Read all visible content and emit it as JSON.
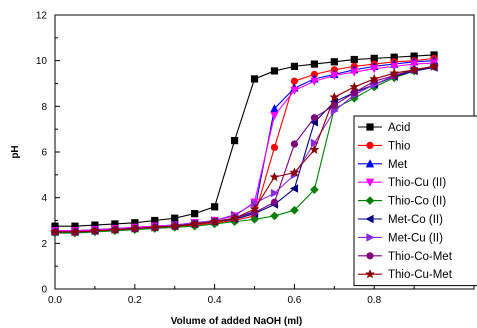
{
  "chart_data": {
    "type": "line",
    "xlabel": "Volume of added NaOH (ml)",
    "ylabel": "pH",
    "xlim": [
      0.0,
      0.95
    ],
    "ylim": [
      0,
      12
    ],
    "x_ticks": [
      0.0,
      0.2,
      0.4,
      0.6,
      0.8
    ],
    "y_ticks": [
      0,
      2,
      4,
      6,
      8,
      10,
      12
    ],
    "x_tick_labels": [
      "0.0",
      "0.2",
      "0.4",
      "0.6",
      "0.8"
    ],
    "y_tick_labels": [
      "0",
      "2",
      "4",
      "6",
      "8",
      "10",
      "12"
    ],
    "grid": false,
    "legend_position": "right",
    "x": [
      0.0,
      0.05,
      0.1,
      0.15,
      0.2,
      0.25,
      0.3,
      0.35,
      0.4,
      0.45,
      0.5,
      0.55,
      0.6,
      0.65,
      0.7,
      0.75,
      0.8,
      0.85,
      0.9,
      0.95
    ],
    "series": [
      {
        "name": "Acid",
        "color": "#000000",
        "marker": "square",
        "values": [
          2.75,
          2.75,
          2.8,
          2.85,
          2.9,
          3.0,
          3.1,
          3.3,
          3.6,
          6.5,
          9.2,
          9.55,
          9.75,
          9.85,
          9.95,
          10.05,
          10.1,
          10.15,
          10.2,
          10.25
        ]
      },
      {
        "name": "Thio",
        "color": "#ff0000",
        "marker": "circle",
        "values": [
          2.5,
          2.5,
          2.55,
          2.6,
          2.65,
          2.7,
          2.75,
          2.8,
          2.9,
          3.0,
          3.2,
          6.2,
          9.1,
          9.4,
          9.6,
          9.75,
          9.85,
          9.95,
          10.0,
          10.1
        ]
      },
      {
        "name": "Met",
        "color": "#0000ff",
        "marker": "triangle-up",
        "values": [
          2.55,
          2.55,
          2.6,
          2.65,
          2.7,
          2.75,
          2.8,
          2.85,
          2.95,
          3.1,
          3.4,
          7.9,
          8.8,
          9.2,
          9.4,
          9.6,
          9.75,
          9.85,
          9.95,
          10.0
        ]
      },
      {
        "name": "Thio-Cu (II)",
        "color": "#ff00ff",
        "marker": "triangle-down",
        "values": [
          2.55,
          2.55,
          2.6,
          2.65,
          2.7,
          2.75,
          2.8,
          2.9,
          3.0,
          3.2,
          3.8,
          7.6,
          8.7,
          9.1,
          9.35,
          9.5,
          9.65,
          9.75,
          9.85,
          9.9
        ]
      },
      {
        "name": "Thio-Co (II)",
        "color": "#008000",
        "marker": "diamond",
        "values": [
          2.45,
          2.45,
          2.5,
          2.55,
          2.6,
          2.65,
          2.7,
          2.75,
          2.85,
          2.95,
          3.05,
          3.2,
          3.45,
          4.35,
          7.9,
          8.35,
          8.85,
          9.25,
          9.55,
          9.75
        ]
      },
      {
        "name": "Met-Co (II)",
        "color": "#000080",
        "marker": "triangle-left",
        "values": [
          2.5,
          2.5,
          2.55,
          2.6,
          2.65,
          2.7,
          2.75,
          2.85,
          2.95,
          3.05,
          3.3,
          3.7,
          4.4,
          7.3,
          8.2,
          8.6,
          8.95,
          9.3,
          9.55,
          9.7
        ]
      },
      {
        "name": "Met-Cu (II)",
        "color": "#8a2be2",
        "marker": "triangle-right",
        "values": [
          2.5,
          2.5,
          2.55,
          2.6,
          2.65,
          2.7,
          2.8,
          2.9,
          3.0,
          3.25,
          3.75,
          4.2,
          5.0,
          6.4,
          7.8,
          8.5,
          8.95,
          9.35,
          9.6,
          9.75
        ]
      },
      {
        "name": "Thio-Co-Met",
        "color": "#800080",
        "marker": "circle",
        "values": [
          2.5,
          2.5,
          2.55,
          2.6,
          2.65,
          2.7,
          2.75,
          2.85,
          2.95,
          3.1,
          3.35,
          3.8,
          6.35,
          7.5,
          8.05,
          8.6,
          9.1,
          9.35,
          9.6,
          9.75
        ]
      },
      {
        "name": "Thio-Cu-Met",
        "color": "#8b0000",
        "marker": "star",
        "values": [
          2.5,
          2.5,
          2.55,
          2.6,
          2.65,
          2.7,
          2.75,
          2.85,
          2.95,
          3.1,
          3.5,
          4.9,
          5.1,
          6.1,
          8.4,
          8.85,
          9.2,
          9.45,
          9.6,
          9.75
        ]
      }
    ]
  }
}
